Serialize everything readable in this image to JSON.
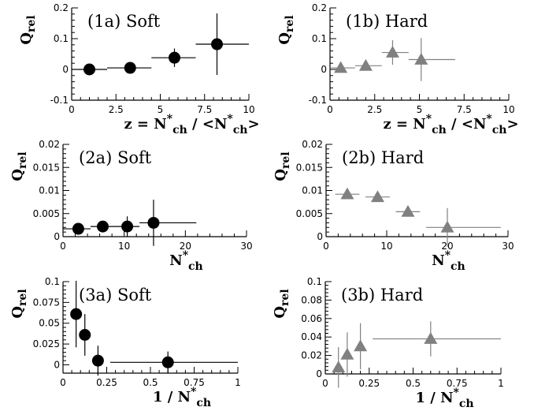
{
  "figure": {
    "background": "#ffffff",
    "marker_colors": {
      "soft": "#000000",
      "hard": "#808080"
    },
    "marker_shapes": {
      "soft": "filled-circle",
      "hard": "filled-triangle"
    }
  },
  "chart_data": [
    {
      "id": "1a",
      "type": "scatter",
      "title": "(1a) Soft",
      "ylabel": "Q_rel",
      "xlabel": "z = N*_ch / <N*_ch>",
      "xlim": [
        0,
        10
      ],
      "ylim": [
        -0.1,
        0.2
      ],
      "xticks": [
        "0",
        "2.5",
        "5",
        "7.5",
        "10"
      ],
      "yticks": [
        "-0.1",
        "0",
        "0.1",
        "0.2"
      ],
      "xtick_values": [
        0,
        2.5,
        5,
        7.5,
        10
      ],
      "ytick_values": [
        -0.1,
        0,
        0.1,
        0.2
      ],
      "marker": "circle",
      "series": [
        {
          "points": [
            {
              "x": 1.0,
              "y": 0.0,
              "xerr": [
                0.0,
                2.0
              ],
              "yerr": 0.0
            },
            {
              "x": 3.3,
              "y": 0.005,
              "xerr": [
                2.0,
                4.5
              ],
              "yerr": 0.0
            },
            {
              "x": 5.8,
              "y": 0.038,
              "xerr": [
                4.5,
                7.0
              ],
              "yerr": 0.03
            },
            {
              "x": 8.2,
              "y": 0.082,
              "xerr": [
                7.0,
                10.0
              ],
              "yerr": 0.1
            }
          ]
        }
      ]
    },
    {
      "id": "1b",
      "type": "scatter",
      "title": "(1b) Hard",
      "ylabel": "Q_rel",
      "xlabel": "z = N*_ch / <N*_ch>",
      "xlim": [
        0,
        10
      ],
      "ylim": [
        -0.1,
        0.2
      ],
      "xticks": [
        "0",
        "2.5",
        "5",
        "7.5",
        "10"
      ],
      "yticks": [
        "-0.1",
        "0",
        "0.1",
        "0.2"
      ],
      "xtick_values": [
        0,
        2.5,
        5,
        7.5,
        10
      ],
      "ytick_values": [
        -0.1,
        0,
        0.1,
        0.2
      ],
      "marker": "triangle",
      "series": [
        {
          "points": [
            {
              "x": 0.6,
              "y": 0.005,
              "xerr": [
                0.0,
                1.4
              ],
              "yerr": 0.0
            },
            {
              "x": 2.0,
              "y": 0.012,
              "xerr": [
                1.4,
                2.9
              ],
              "yerr": 0.0
            },
            {
              "x": 3.5,
              "y": 0.055,
              "xerr": [
                2.9,
                4.4
              ],
              "yerr": 0.04
            },
            {
              "x": 5.1,
              "y": 0.032,
              "xerr": [
                4.4,
                7.0
              ],
              "yerr": 0.07
            }
          ]
        }
      ]
    },
    {
      "id": "2a",
      "type": "scatter",
      "title": "(2a) Soft",
      "ylabel": "Q_rel",
      "xlabel": "N*_ch",
      "xlim": [
        0,
        30
      ],
      "ylim": [
        0,
        0.02
      ],
      "xticks": [
        "0",
        "10",
        "20",
        "30"
      ],
      "yticks": [
        "0",
        "0.005",
        "0.01",
        "0.015",
        "0.02"
      ],
      "xtick_values": [
        0,
        10,
        20,
        30
      ],
      "ytick_values": [
        0,
        0.005,
        0.01,
        0.015,
        0.02
      ],
      "marker": "circle",
      "series": [
        {
          "points": [
            {
              "x": 2.5,
              "y": 0.0017,
              "xerr": [
                0.0,
                4.5
              ],
              "yerr": 0.0
            },
            {
              "x": 6.5,
              "y": 0.0022,
              "xerr": [
                4.5,
                8.5
              ],
              "yerr": 0.0008
            },
            {
              "x": 10.5,
              "y": 0.0022,
              "xerr": [
                8.5,
                12.5
              ],
              "yerr": 0.0022
            },
            {
              "x": 14.8,
              "y": 0.003,
              "xerr": [
                12.5,
                21.8
              ],
              "yerr": 0.005
            }
          ]
        }
      ]
    },
    {
      "id": "2b",
      "type": "scatter",
      "title": "(2b) Hard",
      "ylabel": "Q_rel",
      "xlabel": "N*_ch",
      "xlim": [
        0,
        30
      ],
      "ylim": [
        0,
        0.02
      ],
      "xticks": [
        "0",
        "10",
        "20",
        "30"
      ],
      "yticks": [
        "0",
        "0.005",
        "0.01",
        "0.015",
        "0.02"
      ],
      "xtick_values": [
        0,
        10,
        20,
        30
      ],
      "ytick_values": [
        0,
        0.005,
        0.01,
        0.015,
        0.02
      ],
      "marker": "triangle",
      "series": [
        {
          "points": [
            {
              "x": 3.5,
              "y": 0.0092,
              "xerr": [
                1.5,
                5.5
              ],
              "yerr": 0.0007
            },
            {
              "x": 8.5,
              "y": 0.0086,
              "xerr": [
                6.5,
                10.5
              ],
              "yerr": 0.0006
            },
            {
              "x": 13.5,
              "y": 0.0054,
              "xerr": [
                11.5,
                15.5
              ],
              "yerr": 0.0008
            },
            {
              "x": 20.0,
              "y": 0.002,
              "xerr": [
                16.5,
                28.8
              ],
              "yerr": 0.0042
            }
          ]
        }
      ]
    },
    {
      "id": "3a",
      "type": "scatter",
      "title": "(3a) Soft",
      "ylabel": "Q_rel",
      "xlabel": "1 / N*_ch",
      "xlim": [
        0,
        1
      ],
      "ylim": [
        -0.01,
        0.1
      ],
      "xticks": [
        "0",
        "0.25",
        "0.5",
        "0.75",
        "1"
      ],
      "yticks": [
        "0",
        "0.025",
        "0.05",
        "0.075",
        "0.1"
      ],
      "xtick_values": [
        0,
        0.25,
        0.5,
        0.75,
        1
      ],
      "ytick_values": [
        0,
        0.025,
        0.05,
        0.075,
        0.1
      ],
      "marker": "circle",
      "series": [
        {
          "points": [
            {
              "x": 0.075,
              "y": 0.061,
              "xerr": [
                0.075,
                0.075
              ],
              "yerr": 0.04
            },
            {
              "x": 0.125,
              "y": 0.036,
              "xerr": [
                0.125,
                0.125
              ],
              "yerr": 0.025
            },
            {
              "x": 0.2,
              "y": 0.005,
              "xerr": [
                0.2,
                0.2
              ],
              "yerr": 0.018
            },
            {
              "x": 0.6,
              "y": 0.003,
              "xerr": [
                0.27,
                1.0
              ],
              "yerr": 0.013
            }
          ]
        }
      ]
    },
    {
      "id": "3b",
      "type": "scatter",
      "title": "(3b) Hard",
      "ylabel": "Q_rel",
      "xlabel": "1 / N*_ch",
      "xlim": [
        0,
        1
      ],
      "ylim": [
        0,
        0.1
      ],
      "xticks": [
        "0",
        "0.25",
        "0.5",
        "0.75",
        "1"
      ],
      "yticks": [
        "0",
        "0.02",
        "0.04",
        "0.06",
        "0.08",
        "0.1"
      ],
      "xtick_values": [
        0,
        0.25,
        0.5,
        0.75,
        1
      ],
      "ytick_values": [
        0,
        0.02,
        0.04,
        0.06,
        0.08,
        0.1
      ],
      "marker": "triangle",
      "series": [
        {
          "points": [
            {
              "x": 0.075,
              "y": 0.007,
              "xerr": [
                0.075,
                0.075
              ],
              "yerr": 0.022
            },
            {
              "x": 0.125,
              "y": 0.021,
              "xerr": [
                0.125,
                0.125
              ],
              "yerr": 0.024
            },
            {
              "x": 0.2,
              "y": 0.03,
              "xerr": [
                0.2,
                0.2
              ],
              "yerr": 0.025
            },
            {
              "x": 0.6,
              "y": 0.038,
              "xerr": [
                0.27,
                1.0
              ],
              "yerr": 0.019
            }
          ]
        }
      ]
    }
  ]
}
